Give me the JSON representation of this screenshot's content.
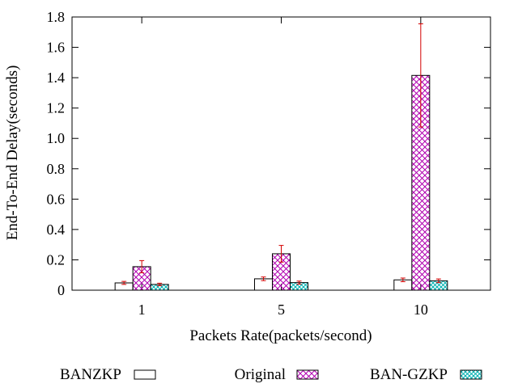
{
  "chart_data": {
    "type": "bar",
    "title": "",
    "xlabel": "Packets Rate(packets/second)",
    "ylabel": "End-To-End Delay(seconds)",
    "ylim": [
      0,
      1.8
    ],
    "yticks": [
      "0",
      "0.2",
      "0.4",
      "0.6",
      "0.8",
      "1.0",
      "1.2",
      "1.4",
      "1.6",
      "1.8"
    ],
    "categories": [
      "1",
      "5",
      "10"
    ],
    "legend_position": "bottom",
    "grid": false,
    "error_bar_color": "#d40000",
    "series": [
      {
        "name": "BANZKP",
        "values": [
          0.048,
          0.075,
          0.068
        ],
        "error": [
          0.01,
          0.012,
          0.012
        ],
        "fill": "empty",
        "color": "#000000"
      },
      {
        "name": "Original",
        "values": [
          0.155,
          0.24,
          1.415
        ],
        "error": [
          0.04,
          0.055,
          0.34
        ],
        "fill": "crosshatch",
        "color": "#b000b0"
      },
      {
        "name": "BAN-GZKP",
        "values": [
          0.038,
          0.05,
          0.062
        ],
        "error": [
          0.008,
          0.01,
          0.012
        ],
        "fill": "crosshatch",
        "color": "#00b0b0"
      }
    ]
  }
}
